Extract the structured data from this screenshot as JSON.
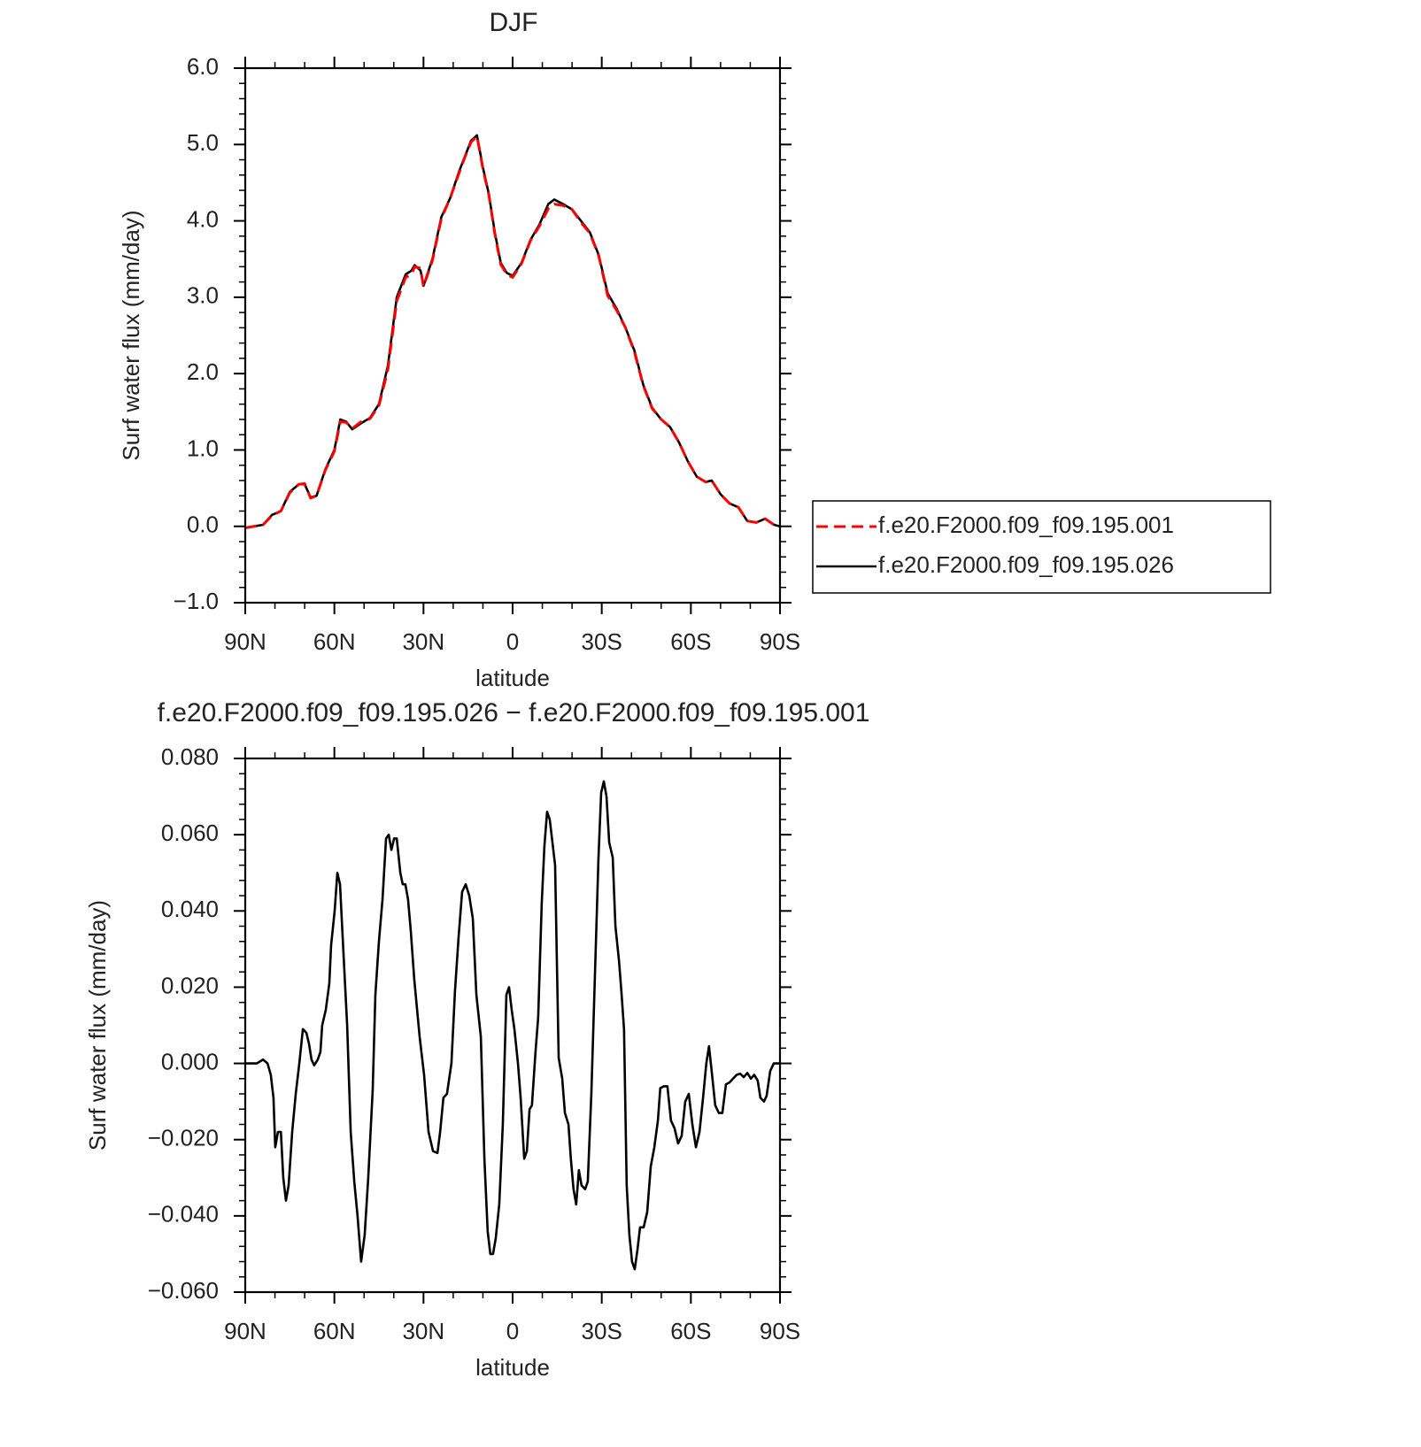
{
  "chart_data": [
    {
      "type": "line",
      "title": "DJF",
      "xlabel": "latitude",
      "ylabel": "Surf water flux (mm/day)",
      "x": [
        90,
        87,
        84,
        81,
        78,
        75,
        72,
        70,
        68,
        66,
        63,
        60,
        58,
        56,
        54,
        51,
        48,
        45,
        42,
        39,
        36,
        34,
        33,
        31,
        30,
        27,
        24,
        21,
        18,
        16,
        14,
        12,
        10,
        8,
        6,
        4,
        2,
        0,
        -3,
        -6,
        -9,
        -12,
        -14,
        -17,
        -20,
        -23,
        -26,
        -29,
        -32,
        -35,
        -38,
        -41,
        -44,
        -47,
        -50,
        -53,
        -56,
        -59,
        -62,
        -65,
        -67,
        -70,
        -73,
        -76,
        -79,
        -82,
        -85,
        -88,
        -90
      ],
      "series": [
        {
          "name": "f.e20.F2000.f09_f09.195.026",
          "color": "#000000",
          "dashed": false,
          "values": [
            -0.02,
            0.0,
            0.02,
            0.15,
            0.2,
            0.45,
            0.55,
            0.55,
            0.38,
            0.4,
            0.75,
            1.0,
            1.4,
            1.37,
            1.27,
            1.35,
            1.42,
            1.6,
            2.1,
            3.0,
            3.3,
            3.35,
            3.42,
            3.35,
            3.15,
            3.5,
            4.05,
            4.3,
            4.65,
            4.85,
            5.05,
            5.12,
            4.7,
            4.35,
            3.85,
            3.45,
            3.32,
            3.28,
            3.45,
            3.75,
            3.95,
            4.22,
            4.28,
            4.22,
            4.15,
            4.0,
            3.85,
            3.55,
            3.05,
            2.85,
            2.6,
            2.3,
            1.85,
            1.55,
            1.4,
            1.3,
            1.1,
            0.85,
            0.65,
            0.58,
            0.6,
            0.42,
            0.3,
            0.25,
            0.07,
            0.05,
            0.1,
            0.02,
            0.0
          ]
        },
        {
          "name": "f.e20.F2000.f09_f09.195.001",
          "color": "#ff0000",
          "dashed": true,
          "values": [
            -0.02,
            0.0,
            0.02,
            0.14,
            0.2,
            0.44,
            0.55,
            0.56,
            0.37,
            0.4,
            0.74,
            0.98,
            1.37,
            1.36,
            1.28,
            1.37,
            1.41,
            1.58,
            2.05,
            2.95,
            3.26,
            3.3,
            3.4,
            3.38,
            3.14,
            3.48,
            4.03,
            4.3,
            4.63,
            4.84,
            5.03,
            5.11,
            4.68,
            4.34,
            3.83,
            3.43,
            3.3,
            3.26,
            3.44,
            3.74,
            3.93,
            4.16,
            4.22,
            4.2,
            4.15,
            3.98,
            3.84,
            3.54,
            3.02,
            2.83,
            2.6,
            2.28,
            1.84,
            1.54,
            1.4,
            1.3,
            1.1,
            0.85,
            0.65,
            0.58,
            0.6,
            0.42,
            0.3,
            0.25,
            0.07,
            0.05,
            0.1,
            0.02,
            0.0
          ]
        }
      ],
      "xlim": [
        90,
        -90
      ],
      "xticks": [
        {
          "value": 90,
          "label": "90N"
        },
        {
          "value": 60,
          "label": "60N"
        },
        {
          "value": 30,
          "label": "30N"
        },
        0,
        {
          "value": -30,
          "label": "30S"
        },
        {
          "value": -60,
          "label": "60S"
        },
        {
          "value": -90,
          "label": "90S"
        }
      ],
      "ylim": [
        -1,
        6
      ],
      "yticks": [
        {
          "value": -1,
          "label": "−1.0"
        },
        {
          "value": 0,
          "label": "0.0"
        },
        {
          "value": 1,
          "label": "1.0"
        },
        {
          "value": 2,
          "label": "2.0"
        },
        {
          "value": 3,
          "label": "3.0"
        },
        {
          "value": 4,
          "label": "4.0"
        },
        {
          "value": 5,
          "label": "5.0"
        },
        {
          "value": 6,
          "label": "6.0"
        }
      ],
      "legend": "outside right"
    },
    {
      "type": "line",
      "title": "f.e20.F2000.f09_f09.195.026 − f.e20.F2000.f09_f09.195.001",
      "xlabel": "latitude",
      "ylabel": "Surf water flux (mm/day)",
      "x": [
        90,
        86.1,
        84,
        82.5,
        81.4,
        80.5,
        79.9,
        79,
        78,
        77.2,
        76.3,
        75.4,
        74.2,
        73,
        71.8,
        70.6,
        69.4,
        68.5,
        67.7,
        66.8,
        65.6,
        64.7,
        64.1,
        62.9,
        61.7,
        61.1,
        59.9,
        59,
        58.1,
        57.2,
        55.7,
        54.5,
        53.3,
        52.2,
        51,
        49.8,
        48.6,
        47.1,
        46.2,
        45,
        43.8,
        42.6,
        41.7,
        40.8,
        39.9,
        39,
        37.8,
        37,
        36.1,
        35.2,
        34.3,
        33.1,
        31.3,
        29.8,
        28.3,
        26.8,
        25.3,
        24.4,
        23.3,
        22.1,
        20.6,
        19.4,
        18.2,
        17,
        15.8,
        14.6,
        13.4,
        12.2,
        10.7,
        9.5,
        8.4,
        7.5,
        6.6,
        5.7,
        4.5,
        3.3,
        2.1,
        1.2,
        0.3,
        -0.6,
        -1.8,
        -2.7,
        -3.9,
        -4.8,
        -5.7,
        -6.5,
        -7.7,
        -8.6,
        -9.8,
        -10.7,
        -11.6,
        -12.5,
        -13.4,
        -14.3,
        -15.5,
        -16.7,
        -17.6,
        -18.8,
        -19.6,
        -20.5,
        -21.4,
        -22.3,
        -23.2,
        -24.4,
        -25.3,
        -26.5,
        -27.7,
        -28.9,
        -29.8,
        -30.7,
        -31.6,
        -32.5,
        -33.7,
        -34.6,
        -35.8,
        -36.6,
        -37.5,
        -38.4,
        -39.3,
        -40.2,
        -41.1,
        -42,
        -42.9,
        -44.1,
        -45.3,
        -46.5,
        -47.7,
        -48.9,
        -49.7,
        -50.9,
        -52.1,
        -53.3,
        -54.5,
        -55.7,
        -56.9,
        -58.1,
        -59.3,
        -60.5,
        -61.7,
        -62.9,
        -64.1,
        -65.2,
        -66.1,
        -67,
        -68.2,
        -69.4,
        -70.6,
        -71.8,
        -73,
        -74.2,
        -75.4,
        -76.6,
        -77.8,
        -79,
        -80.2,
        -81.3,
        -82.5,
        -83.4,
        -84.6,
        -85.5,
        -86.7,
        -87.9,
        -90
      ],
      "values": [
        0.0,
        0.0,
        0.001,
        0.0,
        -0.003,
        -0.009,
        -0.022,
        -0.018,
        -0.018,
        -0.03,
        -0.036,
        -0.032,
        -0.018,
        -0.008,
        0.0,
        0.009,
        0.008,
        0.005,
        0.001,
        -0.0005,
        0.001,
        0.003,
        0.01,
        0.014,
        0.021,
        0.031,
        0.04,
        0.05,
        0.047,
        0.033,
        0.01,
        -0.018,
        -0.031,
        -0.04,
        -0.052,
        -0.045,
        -0.03,
        -0.007,
        0.018,
        0.032,
        0.043,
        0.059,
        0.06,
        0.056,
        0.059,
        0.059,
        0.05,
        0.047,
        0.047,
        0.043,
        0.035,
        0.022,
        0.007,
        -0.003,
        -0.018,
        -0.023,
        -0.0235,
        -0.018,
        -0.009,
        -0.008,
        0.0,
        0.019,
        0.033,
        0.045,
        0.047,
        0.044,
        0.038,
        0.018,
        0.007,
        -0.025,
        -0.044,
        -0.05,
        -0.05,
        -0.046,
        -0.037,
        -0.016,
        0.018,
        0.02,
        0.014,
        0.009,
        0.0,
        -0.009,
        -0.025,
        -0.023,
        -0.012,
        -0.011,
        0.003,
        0.012,
        0.042,
        0.057,
        0.066,
        0.064,
        0.058,
        0.052,
        0.0015,
        -0.004,
        -0.013,
        -0.016,
        -0.025,
        -0.033,
        -0.037,
        -0.028,
        -0.032,
        -0.033,
        -0.031,
        -0.008,
        0.023,
        0.054,
        0.071,
        0.074,
        0.07,
        0.058,
        0.054,
        0.036,
        0.027,
        0.019,
        0.009,
        -0.032,
        -0.045,
        -0.052,
        -0.054,
        -0.049,
        -0.043,
        -0.043,
        -0.039,
        -0.027,
        -0.022,
        -0.015,
        -0.0065,
        -0.006,
        -0.006,
        -0.015,
        -0.017,
        -0.021,
        -0.019,
        -0.01,
        -0.008,
        -0.016,
        -0.022,
        -0.018,
        -0.009,
        0.0,
        0.0045,
        -0.002,
        -0.011,
        -0.013,
        -0.013,
        -0.0055,
        -0.005,
        -0.004,
        -0.003,
        -0.0027,
        -0.0036,
        -0.0025,
        -0.004,
        -0.003,
        -0.0045,
        -0.009,
        -0.01,
        -0.0085,
        -0.002,
        0.0,
        0.0
      ],
      "color": "#000000",
      "xlim": [
        90,
        -90
      ],
      "xticks": [
        {
          "value": 90,
          "label": "90N"
        },
        {
          "value": 60,
          "label": "60N"
        },
        {
          "value": 30,
          "label": "30N"
        },
        0,
        {
          "value": -30,
          "label": "30S"
        },
        {
          "value": -60,
          "label": "60S"
        },
        {
          "value": -90,
          "label": "90S"
        }
      ],
      "ylim": [
        -0.06,
        0.08
      ],
      "yticks": [
        {
          "value": -0.06,
          "label": "−0.060"
        },
        {
          "value": -0.04,
          "label": "−0.040"
        },
        {
          "value": -0.02,
          "label": "−0.020"
        },
        {
          "value": 0,
          "label": "0.000"
        },
        {
          "value": 0.02,
          "label": "0.020"
        },
        {
          "value": 0.04,
          "label": "0.040"
        },
        {
          "value": 0.06,
          "label": "0.060"
        },
        {
          "value": 0.08,
          "label": "0.080"
        }
      ]
    }
  ]
}
